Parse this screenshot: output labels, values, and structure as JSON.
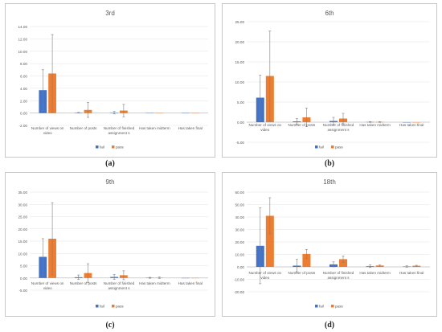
{
  "colors": {
    "fail": "#4472c4",
    "pass": "#ed7d31",
    "grid": "#e3e3e3",
    "axis": "#bfbfbf",
    "text": "#595959",
    "err": "#7f7f7f"
  },
  "captions": [
    "(a)",
    "(b)",
    "(c)",
    "(d)"
  ],
  "chart_data": [
    {
      "type": "bar",
      "title": "3rd",
      "categories": [
        "Number of views on video",
        "Number of posts",
        "Number of finished assignment s",
        "Has taken midterm",
        "Has taken final"
      ],
      "series": [
        {
          "name": "fail",
          "values": [
            3.7,
            0.05,
            0.05,
            0,
            0
          ],
          "error": [
            3.3,
            0.05,
            0.2,
            0,
            0
          ]
        },
        {
          "name": "pass",
          "values": [
            6.4,
            0.5,
            0.4,
            0,
            0
          ],
          "error": [
            6.3,
            1.2,
            1.0,
            0,
            0
          ]
        }
      ],
      "yticks": [
        "14.00",
        "12.00",
        "10.00",
        "8.00",
        "6.00",
        "4.00",
        "2.00",
        "0.00",
        "-2.00"
      ],
      "ylim": [
        -2,
        14
      ],
      "legend": "bottom"
    },
    {
      "type": "bar",
      "title": "6th",
      "categories": [
        "Number of views on video",
        "Number of posts",
        "Number of finished assignment s",
        "Has taken midterm",
        "Has taken final"
      ],
      "series": [
        {
          "name": "fail",
          "values": [
            6.1,
            0.2,
            0.3,
            0.05,
            0
          ],
          "error": [
            5.6,
            0.7,
            0.9,
            0.1,
            0
          ]
        },
        {
          "name": "pass",
          "values": [
            11.5,
            1.2,
            0.9,
            0.05,
            0
          ],
          "error": [
            11.2,
            2.3,
            1.3,
            0.1,
            0
          ]
        }
      ],
      "yticks": [
        "25.00",
        "20.00",
        "15.00",
        "10.00",
        "5.00",
        "0.00",
        "-5.00"
      ],
      "ylim": [
        -5,
        25
      ],
      "legend": "bottom"
    },
    {
      "type": "bar",
      "title": "9th",
      "categories": [
        "Number of views on video",
        "Number of posts",
        "Number of finished assignment s",
        "Has taken midterm",
        "Has taken final"
      ],
      "series": [
        {
          "name": "fail",
          "values": [
            8.6,
            0.3,
            0.4,
            0.05,
            0
          ],
          "error": [
            7.4,
            0.9,
            1.0,
            0.2,
            0
          ]
        },
        {
          "name": "pass",
          "values": [
            16.0,
            2.0,
            1.1,
            0.1,
            0
          ],
          "error": [
            14.7,
            3.8,
            1.8,
            0.3,
            0
          ]
        }
      ],
      "yticks": [
        "35.00",
        "30.00",
        "25.00",
        "20.00",
        "15.00",
        "10.00",
        "5.00",
        "0.00",
        "-5.00"
      ],
      "ylim": [
        -5,
        35
      ],
      "legend": "bottom"
    },
    {
      "type": "bar",
      "title": "18th",
      "categories": [
        "Number of views on video",
        "Number of posts",
        "Number of finished assignment s",
        "Has taken midterm",
        "Has taken final"
      ],
      "series": [
        {
          "name": "fail",
          "values": [
            16.9,
            1.0,
            2.0,
            0.5,
            0.3
          ],
          "error": [
            30.4,
            5.0,
            2.0,
            1.0,
            0.6
          ]
        },
        {
          "name": "pass",
          "values": [
            41.0,
            10.4,
            6.2,
            1.1,
            0.9
          ],
          "error": [
            14.5,
            3.6,
            2.5,
            0.5,
            0.4
          ]
        }
      ],
      "yticks": [
        "60.00",
        "50.00",
        "40.00",
        "30.00",
        "20.00",
        "10.00",
        "0.00",
        "-10.00",
        "-20.00"
      ],
      "ylim": [
        -20,
        60
      ],
      "legend": "bottom"
    }
  ]
}
